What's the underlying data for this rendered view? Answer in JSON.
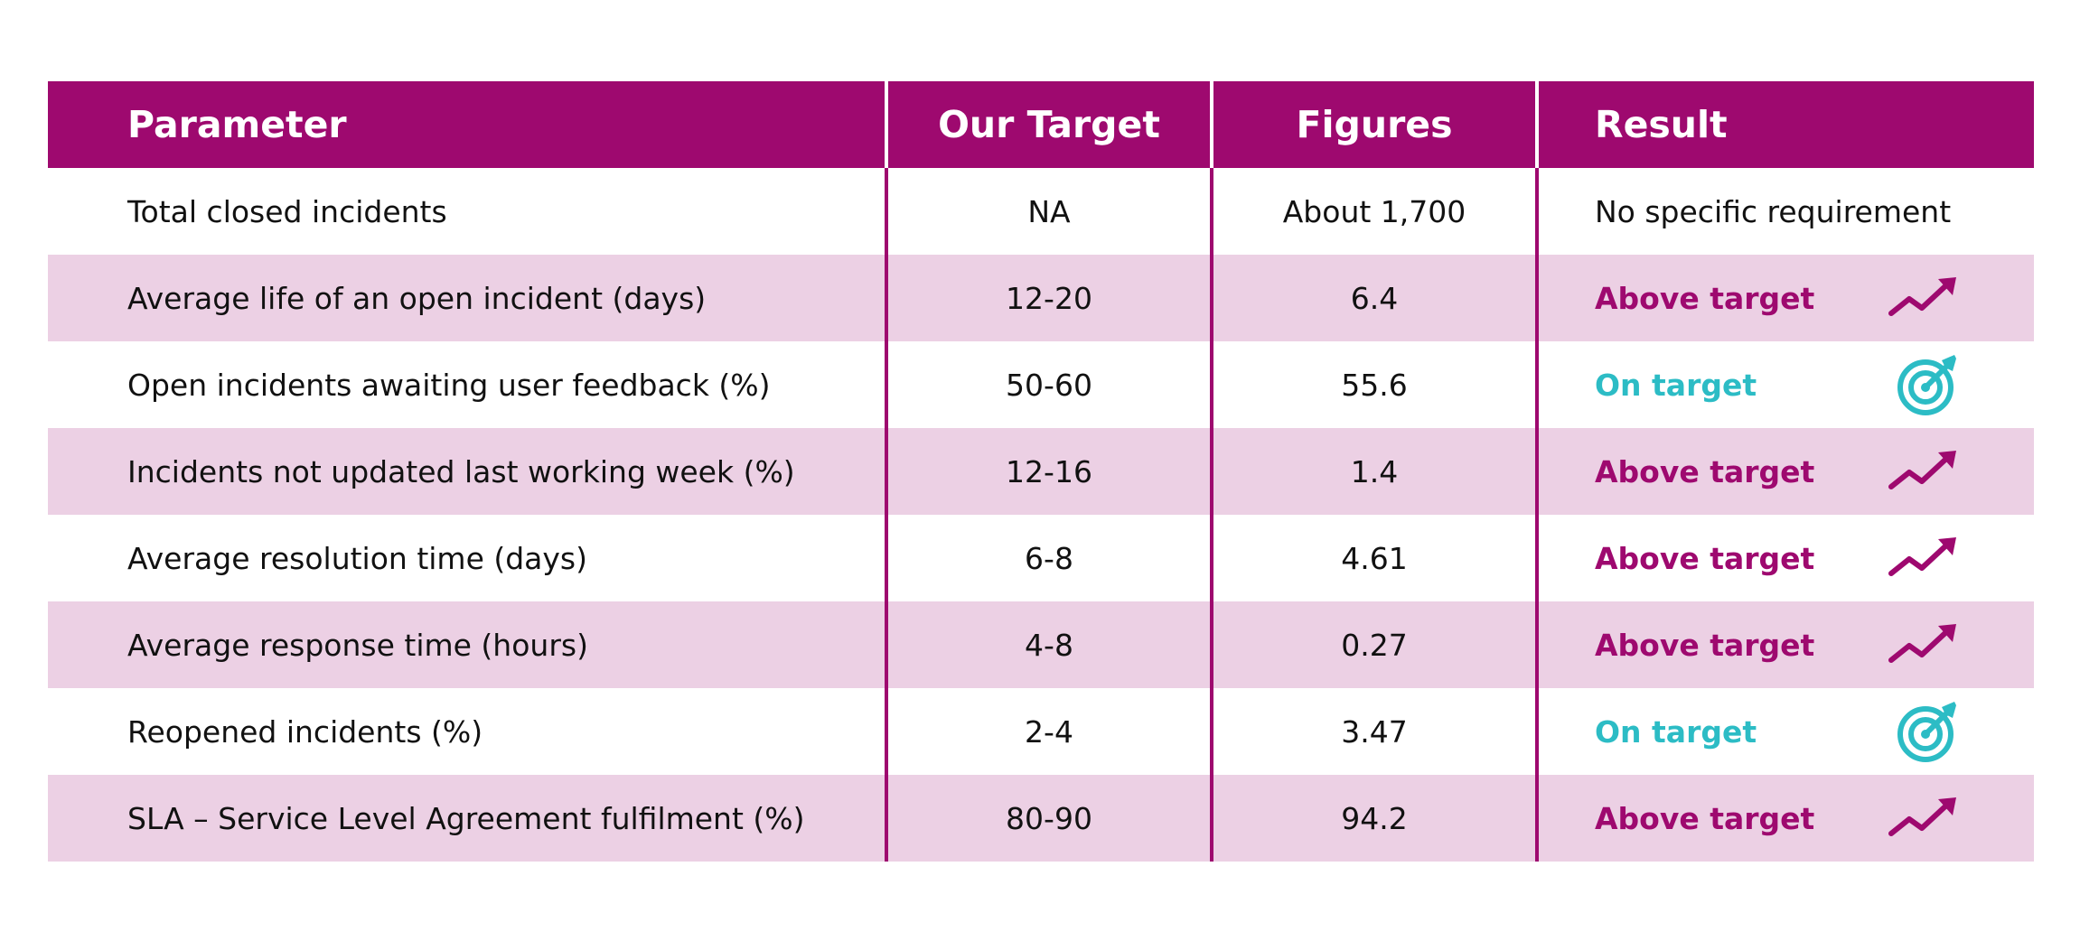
{
  "table": {
    "headers": {
      "parameter": "Parameter",
      "target": "Our Target",
      "figures": "Figures",
      "result": "Result"
    },
    "rows": [
      {
        "parameter": "Total closed incidents",
        "target": "NA",
        "figures": "About 1,700",
        "result": "No specific requirement",
        "status": "none",
        "icon": ""
      },
      {
        "parameter": "Average life of an open incident (days)",
        "target": "12-20",
        "figures": "6.4",
        "result": "Above target",
        "status": "above",
        "icon": "trend-up-icon"
      },
      {
        "parameter": "Open incidents awaiting user feedback (%)",
        "target": "50-60",
        "figures": "55.6",
        "result": "On target",
        "status": "on",
        "icon": "target-icon"
      },
      {
        "parameter": "Incidents not updated last working week (%)",
        "target": "12-16",
        "figures": "1.4",
        "result": "Above target",
        "status": "above",
        "icon": "trend-up-icon"
      },
      {
        "parameter": "Average resolution time (days)",
        "target": "6-8",
        "figures": "4.61",
        "result": "Above target",
        "status": "above",
        "icon": "trend-up-icon"
      },
      {
        "parameter": "Average response time (hours)",
        "target": "4-8",
        "figures": "0.27",
        "result": "Above target",
        "status": "above",
        "icon": "trend-up-icon"
      },
      {
        "parameter": "Reopened incidents (%)",
        "target": "2-4",
        "figures": "3.47",
        "result": "On target",
        "status": "on",
        "icon": "target-icon"
      },
      {
        "parameter": "SLA – Service Level Agreement fulfilment (%)",
        "target": "80-90",
        "figures": "94.2",
        "result": "Above target",
        "status": "above",
        "icon": "trend-up-icon"
      }
    ]
  },
  "colors": {
    "header_bg": "#9e096f",
    "row_shade": "#ecd0e4",
    "above_target": "#9e096f",
    "on_target": "#2cbcc5"
  }
}
